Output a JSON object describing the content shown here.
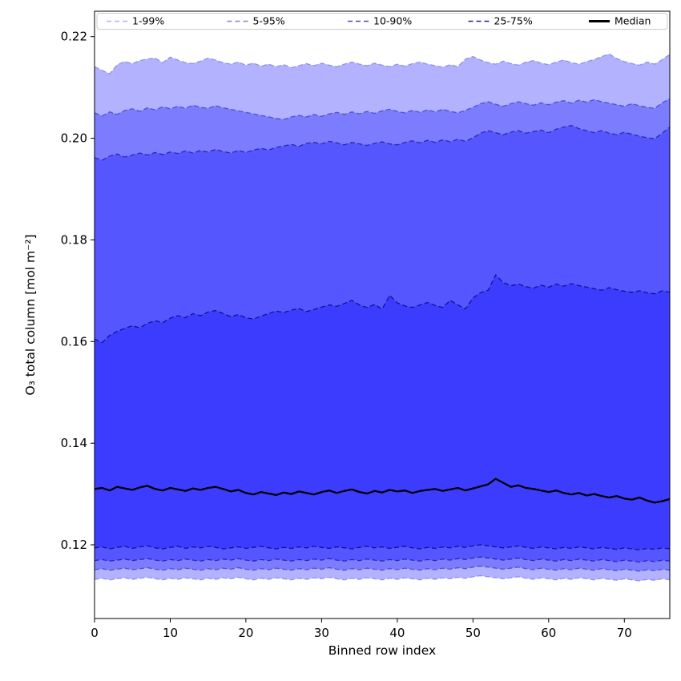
{
  "figure": {
    "background": "#ffffff"
  },
  "legend": {
    "items": [
      {
        "label": "1-99%",
        "line": "dashed",
        "color": "rgba(30,30,190,0.35)",
        "width": 1.5
      },
      {
        "label": "5-95%",
        "line": "dashed",
        "color": "rgba(25,25,170,0.55)",
        "width": 1.5
      },
      {
        "label": "10-90%",
        "line": "dashed",
        "color": "rgba(20,20,150,0.75)",
        "width": 1.5
      },
      {
        "label": "25-75%",
        "line": "dashed",
        "color": "rgba(12,12,130,0.90)",
        "width": 1.5
      },
      {
        "label": "Median",
        "line": "solid",
        "color": "#000000",
        "width": 3
      }
    ]
  },
  "chart_data": {
    "type": "area",
    "title": "",
    "xlabel": "Binned row index",
    "ylabel": "O₃ total column [mol m⁻²]",
    "xlim": [
      0,
      76
    ],
    "ylim": [
      0.1055,
      0.225
    ],
    "xticks": [
      0,
      10,
      20,
      30,
      40,
      50,
      60,
      70
    ],
    "yticks": [
      0.12,
      0.14,
      0.16,
      0.18,
      0.2,
      0.22
    ],
    "grid": false,
    "legend_position": "top-inside-horizontal",
    "style": {
      "band_fill": "rgba(0,0,255,0.30)",
      "edge_colors": [
        "rgba(30,30,190,0.35)",
        "rgba(25,25,170,0.55)",
        "rgba(20,20,150,0.75)",
        "rgba(12,12,130,0.90)"
      ],
      "edge_dash": "6 3.5",
      "median_color": "#000000",
      "axis_color": "#000000"
    },
    "x": [
      0,
      1,
      2,
      3,
      4,
      5,
      6,
      7,
      8,
      9,
      10,
      11,
      12,
      13,
      14,
      15,
      16,
      17,
      18,
      19,
      20,
      21,
      22,
      23,
      24,
      25,
      26,
      27,
      28,
      29,
      30,
      31,
      32,
      33,
      34,
      35,
      36,
      37,
      38,
      39,
      40,
      41,
      42,
      43,
      44,
      45,
      46,
      47,
      48,
      49,
      50,
      51,
      52,
      53,
      54,
      55,
      56,
      57,
      58,
      59,
      60,
      61,
      62,
      63,
      64,
      65,
      66,
      67,
      68,
      69,
      70,
      71,
      72,
      73,
      74,
      75,
      76
    ],
    "bands": [
      {
        "name": "1-99%",
        "lower": [
          0.1132,
          0.1134,
          0.1131,
          0.1133,
          0.1135,
          0.1132,
          0.1134,
          0.1136,
          0.1133,
          0.1131,
          0.1134,
          0.1132,
          0.1135,
          0.1133,
          0.1131,
          0.1134,
          0.1132,
          0.1135,
          0.1133,
          0.1136,
          0.1133,
          0.1131,
          0.1134,
          0.1132,
          0.1135,
          0.1133,
          0.1131,
          0.1134,
          0.1132,
          0.1135,
          0.1133,
          0.1136,
          0.1133,
          0.1131,
          0.1134,
          0.1132,
          0.1135,
          0.1133,
          0.1131,
          0.1134,
          0.1132,
          0.1135,
          0.1133,
          0.1131,
          0.1134,
          0.1132,
          0.1135,
          0.1133,
          0.1136,
          0.1134,
          0.1137,
          0.1139,
          0.1137,
          0.1135,
          0.1133,
          0.1135,
          0.1137,
          0.1134,
          0.1132,
          0.1135,
          0.1133,
          0.1131,
          0.1134,
          0.1132,
          0.1135,
          0.1133,
          0.1131,
          0.1134,
          0.1132,
          0.113,
          0.1133,
          0.1131,
          0.1129,
          0.1132,
          0.113,
          0.1133,
          0.1131
        ],
        "upper": [
          0.2141,
          0.2134,
          0.2127,
          0.2145,
          0.2151,
          0.2147,
          0.2153,
          0.2156,
          0.2158,
          0.2149,
          0.216,
          0.2154,
          0.2149,
          0.2147,
          0.2152,
          0.2158,
          0.2154,
          0.2149,
          0.2146,
          0.215,
          0.2144,
          0.2148,
          0.2142,
          0.2146,
          0.2141,
          0.2145,
          0.2139,
          0.2143,
          0.2147,
          0.2143,
          0.2148,
          0.2144,
          0.2141,
          0.2146,
          0.215,
          0.2146,
          0.2143,
          0.2148,
          0.2144,
          0.2141,
          0.2146,
          0.2142,
          0.2147,
          0.215,
          0.2146,
          0.2143,
          0.214,
          0.2145,
          0.2141,
          0.2156,
          0.2161,
          0.2154,
          0.2149,
          0.2146,
          0.2152,
          0.2147,
          0.2144,
          0.215,
          0.2153,
          0.2148,
          0.2145,
          0.215,
          0.2154,
          0.2149,
          0.2146,
          0.2151,
          0.2155,
          0.2161,
          0.2166,
          0.2157,
          0.2151,
          0.2147,
          0.2144,
          0.215,
          0.2146,
          0.2155,
          0.2165
        ]
      },
      {
        "name": "5-95%",
        "lower": [
          0.1151,
          0.1153,
          0.115,
          0.1152,
          0.1154,
          0.1151,
          0.1153,
          0.1155,
          0.1152,
          0.115,
          0.1153,
          0.1151,
          0.1154,
          0.1152,
          0.115,
          0.1153,
          0.1151,
          0.1154,
          0.1152,
          0.1155,
          0.1152,
          0.115,
          0.1153,
          0.1151,
          0.1154,
          0.1152,
          0.115,
          0.1153,
          0.1151,
          0.1154,
          0.1152,
          0.1155,
          0.1152,
          0.115,
          0.1153,
          0.1151,
          0.1154,
          0.1152,
          0.115,
          0.1153,
          0.1151,
          0.1154,
          0.1152,
          0.115,
          0.1153,
          0.1151,
          0.1154,
          0.1152,
          0.1155,
          0.1153,
          0.1156,
          0.1158,
          0.1156,
          0.1154,
          0.1152,
          0.1154,
          0.1156,
          0.1153,
          0.1151,
          0.1154,
          0.1152,
          0.115,
          0.1153,
          0.1151,
          0.1154,
          0.1152,
          0.115,
          0.1153,
          0.1151,
          0.1149,
          0.1152,
          0.115,
          0.1148,
          0.1151,
          0.1149,
          0.1152,
          0.115
        ],
        "upper": [
          0.205,
          0.2044,
          0.2052,
          0.2047,
          0.2055,
          0.2058,
          0.2053,
          0.206,
          0.2056,
          0.2062,
          0.2058,
          0.2063,
          0.2059,
          0.2065,
          0.2061,
          0.2059,
          0.2064,
          0.206,
          0.2057,
          0.2054,
          0.2051,
          0.2048,
          0.2045,
          0.2042,
          0.2039,
          0.2037,
          0.2042,
          0.2045,
          0.2042,
          0.2047,
          0.2043,
          0.2048,
          0.2051,
          0.2047,
          0.2052,
          0.2048,
          0.2053,
          0.2049,
          0.2054,
          0.2057,
          0.2053,
          0.205,
          0.2055,
          0.2051,
          0.2056,
          0.2052,
          0.2057,
          0.2053,
          0.205,
          0.2055,
          0.2061,
          0.2068,
          0.2072,
          0.2067,
          0.2063,
          0.2068,
          0.2072,
          0.2068,
          0.2065,
          0.207,
          0.2066,
          0.2071,
          0.2074,
          0.2069,
          0.2075,
          0.2071,
          0.2076,
          0.2072,
          0.2069,
          0.2066,
          0.2063,
          0.2068,
          0.2064,
          0.2061,
          0.2059,
          0.207,
          0.2078
        ]
      },
      {
        "name": "10-90%",
        "lower": [
          0.1169,
          0.1171,
          0.1168,
          0.117,
          0.1172,
          0.1169,
          0.1171,
          0.1173,
          0.117,
          0.1168,
          0.1171,
          0.1169,
          0.1172,
          0.117,
          0.1168,
          0.1171,
          0.1169,
          0.1172,
          0.117,
          0.1173,
          0.117,
          0.1168,
          0.1171,
          0.1169,
          0.1172,
          0.117,
          0.1168,
          0.1171,
          0.1169,
          0.1172,
          0.117,
          0.1173,
          0.117,
          0.1168,
          0.1171,
          0.1169,
          0.1172,
          0.117,
          0.1168,
          0.1171,
          0.1169,
          0.1172,
          0.117,
          0.1168,
          0.1171,
          0.1169,
          0.1172,
          0.117,
          0.1173,
          0.1171,
          0.1174,
          0.1176,
          0.1174,
          0.1172,
          0.117,
          0.1172,
          0.1174,
          0.1171,
          0.1169,
          0.1172,
          0.117,
          0.1168,
          0.1171,
          0.1169,
          0.1172,
          0.117,
          0.1168,
          0.1171,
          0.1169,
          0.1167,
          0.117,
          0.1168,
          0.1166,
          0.1169,
          0.1167,
          0.117,
          0.1168
        ],
        "upper": [
          0.1962,
          0.1957,
          0.1965,
          0.1969,
          0.1963,
          0.1967,
          0.1971,
          0.1967,
          0.1972,
          0.1968,
          0.1973,
          0.197,
          0.1975,
          0.1971,
          0.1976,
          0.1973,
          0.1978,
          0.1974,
          0.1971,
          0.1976,
          0.1972,
          0.1977,
          0.198,
          0.1977,
          0.1982,
          0.1985,
          0.1988,
          0.1984,
          0.199,
          0.1992,
          0.1989,
          0.1994,
          0.1991,
          0.1987,
          0.1992,
          0.1989,
          0.1986,
          0.199,
          0.1993,
          0.1989,
          0.1987,
          0.1992,
          0.1995,
          0.1991,
          0.1996,
          0.1992,
          0.1997,
          0.1993,
          0.1998,
          0.1994,
          0.2001,
          0.201,
          0.2015,
          0.2011,
          0.2007,
          0.2012,
          0.2015,
          0.201,
          0.2013,
          0.2016,
          0.2011,
          0.2018,
          0.2022,
          0.2025,
          0.2019,
          0.2015,
          0.2011,
          0.2015,
          0.201,
          0.2007,
          0.2012,
          0.2008,
          0.2004,
          0.2001,
          0.1999,
          0.201,
          0.2022
        ]
      },
      {
        "name": "25-75%",
        "lower": [
          0.1194,
          0.1196,
          0.1192,
          0.1195,
          0.1197,
          0.1193,
          0.1196,
          0.1198,
          0.1194,
          0.1192,
          0.1195,
          0.1197,
          0.1193,
          0.1196,
          0.1194,
          0.1197,
          0.1195,
          0.1192,
          0.1194,
          0.1196,
          0.1193,
          0.1195,
          0.1197,
          0.1194,
          0.1192,
          0.1195,
          0.1193,
          0.1196,
          0.1194,
          0.1197,
          0.1195,
          0.1193,
          0.1196,
          0.1194,
          0.1192,
          0.1195,
          0.1197,
          0.1194,
          0.1196,
          0.1193,
          0.1195,
          0.1197,
          0.1194,
          0.1192,
          0.1195,
          0.1193,
          0.1196,
          0.1194,
          0.1197,
          0.1195,
          0.1198,
          0.12,
          0.1198,
          0.1196,
          0.1194,
          0.1196,
          0.1198,
          0.1195,
          0.1193,
          0.1196,
          0.1194,
          0.1192,
          0.1195,
          0.1193,
          0.1196,
          0.1194,
          0.1192,
          0.1195,
          0.1193,
          0.1191,
          0.1194,
          0.1192,
          0.119,
          0.1193,
          0.1191,
          0.1194,
          0.1192
        ],
        "upper": [
          0.1605,
          0.1598,
          0.1612,
          0.162,
          0.1626,
          0.1631,
          0.1627,
          0.1636,
          0.1641,
          0.1637,
          0.1646,
          0.1651,
          0.1647,
          0.1655,
          0.1651,
          0.1658,
          0.1661,
          0.1655,
          0.1649,
          0.1653,
          0.1647,
          0.1644,
          0.165,
          0.1655,
          0.166,
          0.1657,
          0.1662,
          0.1665,
          0.1659,
          0.1663,
          0.1668,
          0.1672,
          0.1669,
          0.1675,
          0.1681,
          0.1672,
          0.1667,
          0.1673,
          0.1664,
          0.1691,
          0.1676,
          0.167,
          0.1667,
          0.1672,
          0.1677,
          0.1671,
          0.1667,
          0.1681,
          0.1672,
          0.1664,
          0.1686,
          0.1696,
          0.1701,
          0.1731,
          0.1716,
          0.171,
          0.1713,
          0.1708,
          0.1705,
          0.1711,
          0.1707,
          0.1713,
          0.1709,
          0.1714,
          0.171,
          0.1707,
          0.1704,
          0.1701,
          0.1706,
          0.1702,
          0.1699,
          0.1697,
          0.17,
          0.1696,
          0.1694,
          0.17,
          0.1697
        ]
      }
    ],
    "median": {
      "name": "Median",
      "values": [
        0.131,
        0.1312,
        0.1307,
        0.1314,
        0.1311,
        0.1308,
        0.1313,
        0.1316,
        0.131,
        0.1307,
        0.1312,
        0.1309,
        0.1306,
        0.1311,
        0.1308,
        0.1312,
        0.1314,
        0.131,
        0.1305,
        0.1308,
        0.1302,
        0.1299,
        0.1304,
        0.1301,
        0.1298,
        0.1303,
        0.13,
        0.1305,
        0.1302,
        0.1299,
        0.1304,
        0.1307,
        0.1302,
        0.1306,
        0.1309,
        0.1304,
        0.1301,
        0.1306,
        0.1303,
        0.1308,
        0.1305,
        0.1307,
        0.1302,
        0.1306,
        0.1308,
        0.131,
        0.1306,
        0.1309,
        0.1312,
        0.1307,
        0.1311,
        0.1315,
        0.1319,
        0.133,
        0.1322,
        0.1314,
        0.1317,
        0.1312,
        0.131,
        0.1307,
        0.1304,
        0.1307,
        0.1302,
        0.1299,
        0.1302,
        0.1297,
        0.13,
        0.1296,
        0.1293,
        0.1296,
        0.1291,
        0.1289,
        0.1293,
        0.1287,
        0.1283,
        0.1286,
        0.129
      ]
    }
  }
}
